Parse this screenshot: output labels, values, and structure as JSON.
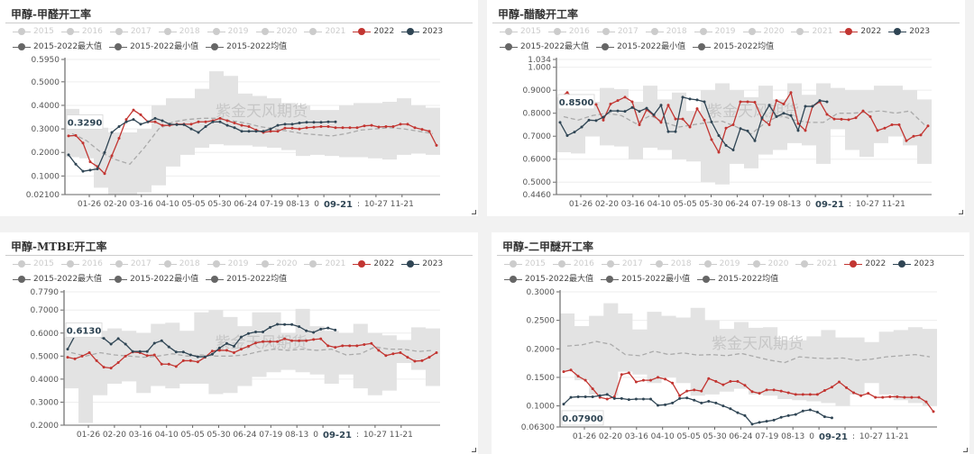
{
  "watermark": "紫金天风期货",
  "colors": {
    "y2022": "#c23531",
    "y2023": "#2f4554",
    "inactive": "#cccccc",
    "band": "#e3e3e3",
    "avg": "#aaaaaa",
    "stat": "#666666"
  },
  "legend": [
    {
      "label": "2015",
      "active": false
    },
    {
      "label": "2016",
      "active": false
    },
    {
      "label": "2017",
      "active": false
    },
    {
      "label": "2018",
      "active": false
    },
    {
      "label": "2019",
      "active": false
    },
    {
      "label": "2020",
      "active": false
    },
    {
      "label": "2021",
      "active": false
    },
    {
      "label": "2022",
      "active": true,
      "color": "#c23531"
    },
    {
      "label": "2023",
      "active": true,
      "color": "#2f4554"
    },
    {
      "label": "2015-2022最大值",
      "active": true,
      "color": "#666666"
    },
    {
      "label": "2015-2022最小值",
      "active": true,
      "color": "#666666"
    },
    {
      "label": "2015-2022均值",
      "active": true,
      "color": "#666666"
    }
  ],
  "x_tick_labels": [
    "01-26",
    "02-20",
    "03-16",
    "04-10",
    "05-05",
    "05-30",
    "06-24",
    "07-19",
    "08-13",
    "0",
    ":",
    "10-27",
    "11-21"
  ],
  "x_pointer_label": "09-21",
  "chart_data": [
    {
      "type": "line",
      "title": "甲醇-甲醛开工率",
      "ylim": [
        0.021,
        0.595
      ],
      "y_ticks": [
        "0.5950",
        "0.5000",
        "0.4000",
        "0.3000",
        "0.2000",
        "0.1000",
        "0.02100"
      ],
      "y_pointer_label": "0.3290",
      "y_pointer_value": 0.329,
      "series": [
        {
          "name": "2022",
          "values": [
            0.27,
            0.272,
            0.24,
            0.16,
            0.14,
            0.11,
            0.186,
            0.26,
            0.34,
            0.38,
            0.36,
            0.33,
            0.33,
            0.315,
            0.315,
            0.32,
            0.32,
            0.32,
            0.33,
            0.33,
            0.335,
            0.345,
            0.335,
            0.325,
            0.315,
            0.31,
            0.295,
            0.285,
            0.29,
            0.29,
            0.303,
            0.303,
            0.3,
            0.305,
            0.307,
            0.31,
            0.31,
            0.305,
            0.305,
            0.305,
            0.305,
            0.313,
            0.315,
            0.308,
            0.31,
            0.31,
            0.32,
            0.32,
            0.305,
            0.298,
            0.29,
            0.23
          ]
        },
        {
          "name": "2023",
          "values": [
            0.19,
            0.15,
            0.12,
            0.125,
            0.13,
            0.2,
            0.285,
            0.31,
            0.33,
            0.34,
            0.32,
            0.33,
            0.345,
            0.335,
            0.32,
            0.318,
            0.318,
            0.3,
            0.285,
            0.31,
            0.33,
            0.33,
            0.315,
            0.305,
            0.29,
            0.29,
            0.29,
            0.29,
            0.3,
            0.315,
            0.32,
            0.32,
            0.325,
            0.328,
            0.328,
            0.328,
            0.33,
            0.33
          ]
        },
        {
          "name": "2015-2022最大值",
          "values": [
            0.385,
            0.335,
            0.305,
            0.285,
            0.285,
            0.3,
            0.4,
            0.43,
            0.43,
            0.47,
            0.545,
            0.525,
            0.45,
            0.44,
            0.43,
            0.41,
            0.4,
            0.38,
            0.38,
            0.4,
            0.41,
            0.41,
            0.415,
            0.43,
            0.4,
            0.39
          ]
        },
        {
          "name": "2015-2022最小值",
          "values": [
            0.18,
            0.175,
            0.05,
            0.02,
            0.02,
            0.03,
            0.06,
            0.14,
            0.19,
            0.22,
            0.235,
            0.23,
            0.23,
            0.225,
            0.22,
            0.21,
            0.185,
            0.19,
            0.185,
            0.18,
            0.18,
            0.175,
            0.17,
            0.19,
            0.195,
            0.19
          ]
        },
        {
          "name": "2015-2022均值",
          "values": [
            0.28,
            0.25,
            0.2,
            0.17,
            0.15,
            0.22,
            0.3,
            0.33,
            0.34,
            0.345,
            0.345,
            0.335,
            0.325,
            0.31,
            0.3,
            0.29,
            0.28,
            0.275,
            0.27,
            0.28,
            0.295,
            0.3,
            0.305,
            0.3,
            0.29,
            0.28
          ]
        }
      ]
    },
    {
      "type": "line",
      "title": "甲醇-醋酸开工率",
      "ylim": [
        0.446,
        1.034
      ],
      "y_ticks": [
        "1.034",
        "1.000",
        "0.9000",
        "0.8000",
        "0.7000",
        "0.6000",
        "0.5000",
        "0.4460"
      ],
      "y_pointer_label": "0.8500",
      "y_pointer_value": 0.85,
      "series": [
        {
          "name": "2022",
          "values": [
            0.87,
            0.89,
            0.86,
            0.84,
            0.839,
            0.838,
            0.77,
            0.84,
            0.855,
            0.87,
            0.85,
            0.75,
            0.815,
            0.79,
            0.76,
            0.835,
            0.775,
            0.775,
            0.74,
            0.82,
            0.77,
            0.685,
            0.63,
            0.735,
            0.75,
            0.85,
            0.85,
            0.848,
            0.775,
            0.75,
            0.855,
            0.84,
            0.89,
            0.755,
            0.725,
            0.83,
            0.85,
            0.795,
            0.775,
            0.774,
            0.772,
            0.78,
            0.81,
            0.785,
            0.725,
            0.735,
            0.75,
            0.75,
            0.68,
            0.7,
            0.705,
            0.745
          ]
        },
        {
          "name": "2023",
          "values": [
            0.76,
            0.703,
            0.718,
            0.74,
            0.77,
            0.768,
            0.783,
            0.81,
            0.81,
            0.808,
            0.825,
            0.808,
            0.822,
            0.793,
            0.835,
            0.72,
            0.72,
            0.87,
            0.862,
            0.858,
            0.85,
            0.762,
            0.703,
            0.66,
            0.64,
            0.733,
            0.723,
            0.68,
            0.78,
            0.835,
            0.785,
            0.8,
            0.79,
            0.725,
            0.83,
            0.83,
            0.855,
            0.85
          ]
        },
        {
          "name": "2015-2022最大值",
          "values": [
            0.87,
            0.865,
            0.85,
            0.91,
            0.905,
            0.85,
            0.92,
            0.86,
            0.89,
            0.81,
            0.9,
            0.93,
            0.9,
            0.87,
            0.92,
            0.86,
            0.93,
            0.88,
            0.93,
            0.91,
            0.9,
            0.9,
            0.92,
            0.92,
            0.9,
            0.86
          ]
        },
        {
          "name": "2015-2022最小值",
          "values": [
            0.63,
            0.625,
            0.7,
            0.66,
            0.655,
            0.6,
            0.65,
            0.64,
            0.6,
            0.59,
            0.5,
            0.49,
            0.58,
            0.56,
            0.62,
            0.64,
            0.67,
            0.66,
            0.58,
            0.73,
            0.64,
            0.61,
            0.67,
            0.7,
            0.66,
            0.58
          ]
        },
        {
          "name": "2015-2022均值",
          "values": [
            0.785,
            0.77,
            0.79,
            0.8,
            0.79,
            0.755,
            0.79,
            0.76,
            0.74,
            0.75,
            0.76,
            0.765,
            0.74,
            0.71,
            0.76,
            0.79,
            0.77,
            0.76,
            0.76,
            0.8,
            0.8,
            0.805,
            0.81,
            0.8,
            0.81,
            0.75
          ]
        }
      ]
    },
    {
      "type": "line",
      "title": "甲醇-MTBE开工率",
      "ylim": [
        0.2,
        0.779
      ],
      "y_ticks": [
        "0.7790",
        "0.7000",
        "0.6000",
        "0.5000",
        "0.4000",
        "0.3000",
        "0.2000"
      ],
      "y_pointer_label": "0.6130",
      "y_pointer_value": 0.613,
      "series": [
        {
          "name": "2022",
          "values": [
            0.495,
            0.488,
            0.5,
            0.515,
            0.48,
            0.452,
            0.448,
            0.472,
            0.5,
            0.518,
            0.515,
            0.502,
            0.505,
            0.465,
            0.465,
            0.455,
            0.48,
            0.48,
            0.475,
            0.495,
            0.522,
            0.525,
            0.525,
            0.515,
            0.53,
            0.543,
            0.557,
            0.563,
            0.563,
            0.563,
            0.575,
            0.567,
            0.567,
            0.567,
            0.572,
            0.575,
            0.545,
            0.538,
            0.545,
            0.545,
            0.545,
            0.55,
            0.555,
            0.525,
            0.502,
            0.51,
            0.515,
            0.495,
            0.478,
            0.48,
            0.495,
            0.515
          ]
        },
        {
          "name": "2023",
          "values": [
            0.53,
            0.588,
            0.588,
            0.588,
            0.588,
            0.577,
            0.552,
            0.576,
            0.552,
            0.52,
            0.52,
            0.52,
            0.556,
            0.567,
            0.54,
            0.518,
            0.518,
            0.505,
            0.497,
            0.497,
            0.508,
            0.535,
            0.555,
            0.543,
            0.583,
            0.598,
            0.605,
            0.605,
            0.625,
            0.638,
            0.637,
            0.637,
            0.628,
            0.61,
            0.603,
            0.617,
            0.622,
            0.613
          ]
        },
        {
          "name": "2015-2022最大值",
          "values": [
            0.58,
            0.6,
            0.61,
            0.62,
            0.61,
            0.6,
            0.64,
            0.645,
            0.61,
            0.69,
            0.7,
            0.67,
            0.63,
            0.69,
            0.69,
            0.6,
            0.705,
            0.63,
            0.61,
            0.6,
            0.64,
            0.6,
            0.59,
            0.57,
            0.625,
            0.62
          ]
        },
        {
          "name": "2015-2022最小值",
          "values": [
            0.36,
            0.21,
            0.33,
            0.38,
            0.39,
            0.34,
            0.37,
            0.36,
            0.38,
            0.38,
            0.335,
            0.34,
            0.37,
            0.41,
            0.43,
            0.44,
            0.43,
            0.42,
            0.38,
            0.42,
            0.36,
            0.33,
            0.35,
            0.47,
            0.44,
            0.37
          ]
        },
        {
          "name": "2015-2022均值",
          "values": [
            0.515,
            0.5,
            0.515,
            0.505,
            0.5,
            0.495,
            0.5,
            0.51,
            0.5,
            0.505,
            0.5,
            0.5,
            0.505,
            0.52,
            0.53,
            0.525,
            0.53,
            0.525,
            0.53,
            0.505,
            0.51,
            0.54,
            0.53,
            0.53,
            0.52,
            0.525
          ]
        }
      ]
    },
    {
      "type": "line",
      "title": "甲醇-二甲醚开工率",
      "ylim": [
        0.063,
        0.3
      ],
      "y_ticks": [
        "0.3000",
        "0.2500",
        "0.2000",
        "0.1500",
        "0.1000",
        "0.06300"
      ],
      "y_pointer_label": "0.07900",
      "y_pointer_value": 0.079,
      "series": [
        {
          "name": "2022",
          "values": [
            0.16,
            0.163,
            0.152,
            0.145,
            0.13,
            0.115,
            0.112,
            0.116,
            0.155,
            0.158,
            0.142,
            0.145,
            0.145,
            0.15,
            0.147,
            0.14,
            0.118,
            0.126,
            0.128,
            0.126,
            0.148,
            0.143,
            0.137,
            0.143,
            0.143,
            0.136,
            0.125,
            0.122,
            0.128,
            0.128,
            0.126,
            0.123,
            0.12,
            0.12,
            0.12,
            0.12,
            0.127,
            0.133,
            0.142,
            0.132,
            0.123,
            0.118,
            0.122,
            0.115,
            0.115,
            0.116,
            0.116,
            0.115,
            0.115,
            0.115,
            0.107,
            0.09
          ]
        },
        {
          "name": "2023",
          "values": [
            0.103,
            0.115,
            0.116,
            0.116,
            0.116,
            0.118,
            0.12,
            0.113,
            0.113,
            0.111,
            0.112,
            0.112,
            0.112,
            0.101,
            0.102,
            0.105,
            0.113,
            0.114,
            0.11,
            0.105,
            0.108,
            0.105,
            0.1,
            0.095,
            0.088,
            0.083,
            0.068,
            0.071,
            0.073,
            0.075,
            0.08,
            0.083,
            0.085,
            0.091,
            0.093,
            0.089,
            0.081,
            0.079
          ]
        },
        {
          "name": "2015-2022最大值",
          "values": [
            0.262,
            0.24,
            0.258,
            0.28,
            0.262,
            0.234,
            0.265,
            0.258,
            0.255,
            0.272,
            0.25,
            0.235,
            0.247,
            0.237,
            0.238,
            0.215,
            0.215,
            0.222,
            0.233,
            0.22,
            0.22,
            0.212,
            0.23,
            0.233,
            0.238,
            0.235
          ]
        },
        {
          "name": "2015-2022最小值",
          "values": [
            0.162,
            0.145,
            0.12,
            0.118,
            0.16,
            0.155,
            0.14,
            0.15,
            0.14,
            0.118,
            0.12,
            0.125,
            0.13,
            0.12,
            0.118,
            0.112,
            0.11,
            0.108,
            0.105,
            0.1,
            0.12,
            0.14,
            0.12,
            0.11,
            0.105,
            0.1
          ]
        },
        {
          "name": "2015-2022均值",
          "values": [
            0.205,
            0.207,
            0.213,
            0.208,
            0.19,
            0.188,
            0.196,
            0.19,
            0.193,
            0.189,
            0.19,
            0.188,
            0.192,
            0.186,
            0.18,
            0.176,
            0.186,
            0.184,
            0.183,
            0.184,
            0.18,
            0.182,
            0.186,
            0.188,
            0.19,
            0.186
          ]
        }
      ]
    }
  ]
}
